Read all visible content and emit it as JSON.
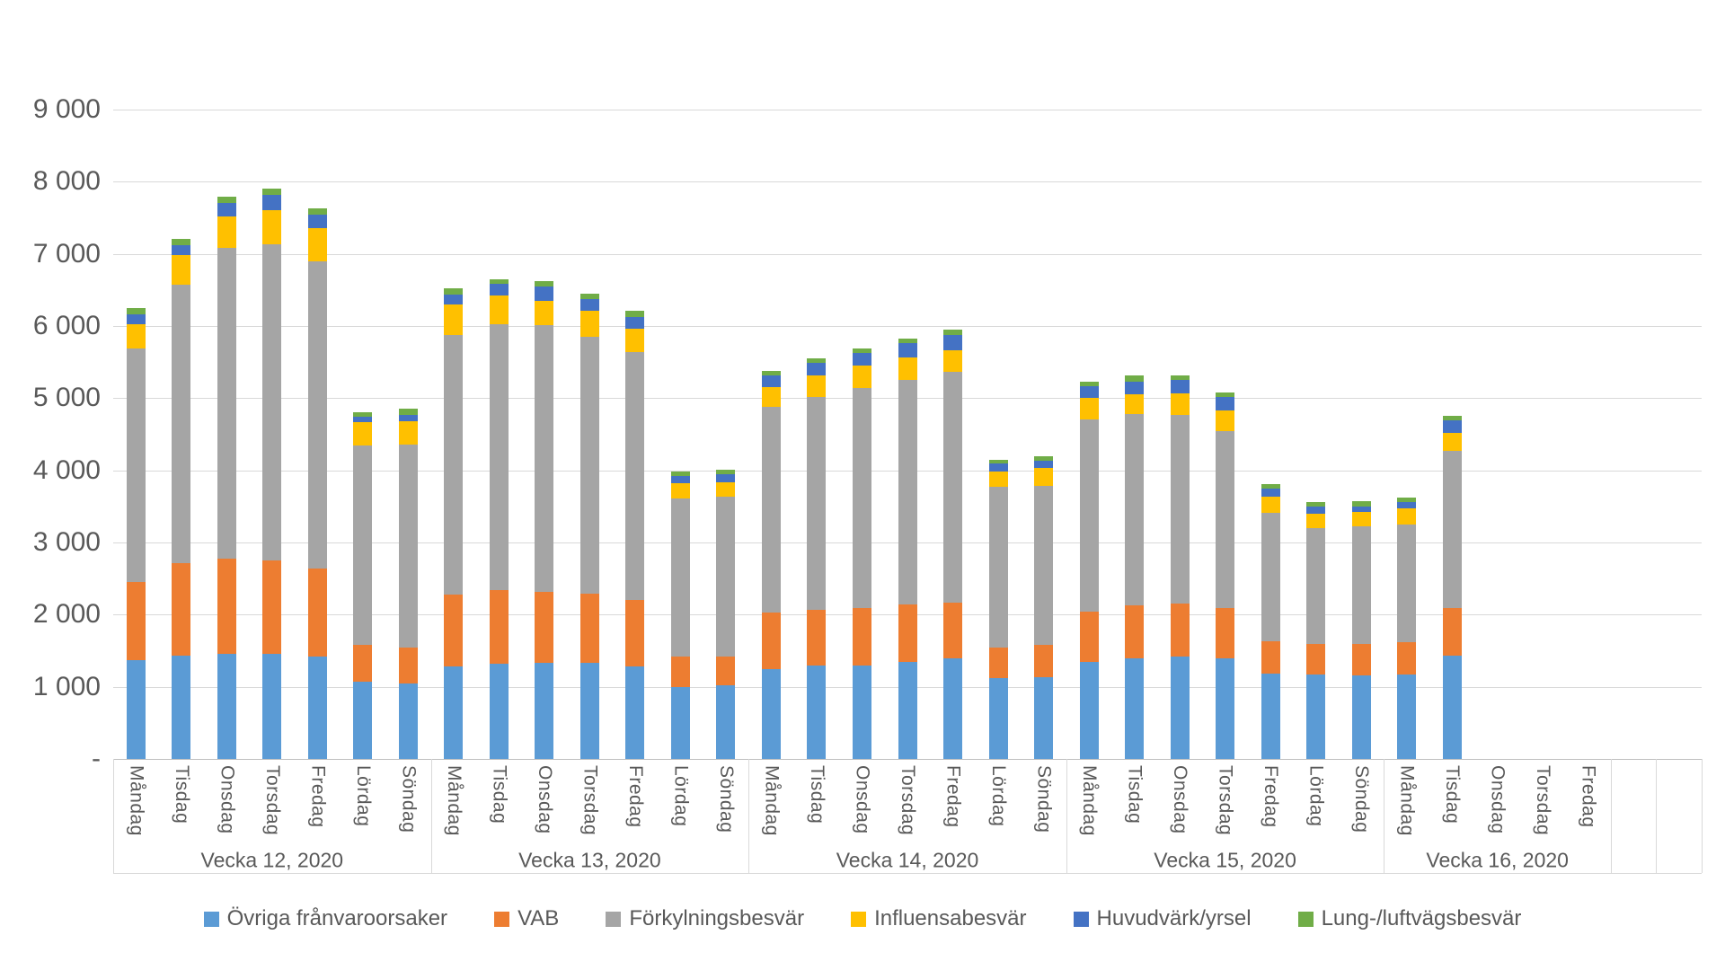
{
  "y_axis": {
    "max": 9000,
    "ticks": [
      {
        "value": 9000,
        "label": "9 000"
      },
      {
        "value": 8000,
        "label": "8 000"
      },
      {
        "value": 7000,
        "label": "7 000"
      },
      {
        "value": 6000,
        "label": "6 000"
      },
      {
        "value": 5000,
        "label": "5 000"
      },
      {
        "value": 4000,
        "label": "4 000"
      },
      {
        "value": 3000,
        "label": "3 000"
      },
      {
        "value": 2000,
        "label": "2 000"
      },
      {
        "value": 1000,
        "label": "1 000"
      },
      {
        "value": 0,
        "label": "-"
      }
    ]
  },
  "chart_data": {
    "type": "bar",
    "stacked": true,
    "ylim": [
      0,
      9000
    ],
    "grid": true,
    "legend_position": "bottom",
    "series": [
      {
        "name": "Övriga frånvaroorsaker",
        "color": "#5b9bd5"
      },
      {
        "name": "VAB",
        "color": "#ed7d31"
      },
      {
        "name": "Förkylningsbesvär",
        "color": "#a5a5a5"
      },
      {
        "name": "Influensabesvär",
        "color": "#ffc000"
      },
      {
        "name": "Huvudvärk/yrsel",
        "color": "#4472c4"
      },
      {
        "name": "Lung-/luftvägsbesvär",
        "color": "#70ad47"
      }
    ],
    "groups": [
      {
        "label": "Vecka 12, 2020",
        "days": [
          {
            "day": "Måndag",
            "values": [
              1370,
              1080,
              3240,
              330,
              140,
              90
            ]
          },
          {
            "day": "Tisdag",
            "values": [
              1430,
              1290,
              3850,
              410,
              140,
              90
            ]
          },
          {
            "day": "Onsdag",
            "values": [
              1460,
              1320,
              4300,
              440,
              180,
              90
            ]
          },
          {
            "day": "Torsdag",
            "values": [
              1455,
              1295,
              4380,
              470,
              220,
              80
            ]
          },
          {
            "day": "Fredag",
            "values": [
              1415,
              1225,
              4260,
              460,
              190,
              80
            ]
          },
          {
            "day": "Lördag",
            "values": [
              1070,
              510,
              2760,
              330,
              70,
              70
            ]
          },
          {
            "day": "Söndag",
            "values": [
              1050,
              500,
              2810,
              320,
              90,
              80
            ]
          }
        ]
      },
      {
        "label": "Vecka 13, 2020",
        "days": [
          {
            "day": "Måndag",
            "values": [
              1280,
              1000,
              3600,
              420,
              140,
              80
            ]
          },
          {
            "day": "Tisdag",
            "values": [
              1320,
              1020,
              3680,
              400,
              160,
              70
            ]
          },
          {
            "day": "Onsdag",
            "values": [
              1330,
              990,
              3690,
              340,
              200,
              70
            ]
          },
          {
            "day": "Torsdag",
            "values": [
              1330,
              960,
              3560,
              360,
              160,
              80
            ]
          },
          {
            "day": "Fredag",
            "values": [
              1280,
              920,
              3440,
              320,
              170,
              80
            ]
          },
          {
            "day": "Lördag",
            "values": [
              1000,
              420,
              2190,
              210,
              100,
              60
            ]
          },
          {
            "day": "Söndag",
            "values": [
              1020,
              400,
              2220,
              200,
              110,
              60
            ]
          }
        ]
      },
      {
        "label": "Vecka 14, 2020",
        "days": [
          {
            "day": "Måndag",
            "values": [
              1250,
              780,
              2850,
              280,
              160,
              60
            ]
          },
          {
            "day": "Tisdag",
            "values": [
              1290,
              780,
              2950,
              300,
              170,
              60
            ]
          },
          {
            "day": "Onsdag",
            "values": [
              1300,
              790,
              3050,
              310,
              180,
              60
            ]
          },
          {
            "day": "Torsdag",
            "values": [
              1350,
              790,
              3110,
              310,
              210,
              60
            ]
          },
          {
            "day": "Fredag",
            "values": [
              1400,
              770,
              3200,
              300,
              210,
              70
            ]
          },
          {
            "day": "Lördag",
            "values": [
              1120,
              430,
              2220,
              210,
              110,
              60
            ]
          },
          {
            "day": "Söndag",
            "values": [
              1130,
              450,
              2210,
              240,
              100,
              70
            ]
          }
        ]
      },
      {
        "label": "Vecka 15, 2020",
        "days": [
          {
            "day": "Måndag",
            "values": [
              1350,
              690,
              2660,
              300,
              170,
              60
            ]
          },
          {
            "day": "Tisdag",
            "values": [
              1400,
              730,
              2650,
              280,
              170,
              80
            ]
          },
          {
            "day": "Onsdag",
            "values": [
              1415,
              735,
              2620,
              300,
              180,
              70
            ]
          },
          {
            "day": "Torsdag",
            "values": [
              1400,
              690,
              2460,
              280,
              190,
              60
            ]
          },
          {
            "day": "Fredag",
            "values": [
              1185,
              440,
              1785,
              220,
              120,
              60
            ]
          },
          {
            "day": "Lördag",
            "values": [
              1170,
              425,
              1605,
              200,
              100,
              60
            ]
          },
          {
            "day": "Söndag",
            "values": [
              1160,
              430,
              1630,
              200,
              80,
              70
            ]
          }
        ]
      },
      {
        "label": "Vecka 16, 2020",
        "days": [
          {
            "day": "Måndag",
            "values": [
              1170,
              450,
              1630,
              220,
              90,
              60
            ]
          },
          {
            "day": "Tisdag",
            "values": [
              1430,
              660,
              2180,
              250,
              170,
              60
            ]
          },
          {
            "day": "Onsdag",
            "values": null
          },
          {
            "day": "Torsdag",
            "values": null
          },
          {
            "day": "Fredag",
            "values": null
          }
        ]
      }
    ],
    "trailing_empty_slots": 2
  },
  "legend": {
    "items": [
      {
        "label": "Övriga frånvaroorsaker",
        "color": "#5b9bd5"
      },
      {
        "label": "VAB",
        "color": "#ed7d31"
      },
      {
        "label": "Förkylningsbesvär",
        "color": "#a5a5a5"
      },
      {
        "label": "Influensabesvär",
        "color": "#ffc000"
      },
      {
        "label": "Huvudvärk/yrsel",
        "color": "#4472c4"
      },
      {
        "label": "Lung-/luftvägsbesvär",
        "color": "#70ad47"
      }
    ]
  }
}
